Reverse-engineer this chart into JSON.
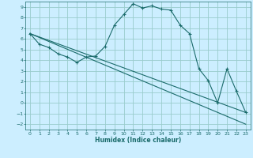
{
  "title": "",
  "xlabel": "Humidex (Indice chaleur)",
  "bg_color": "#cceeff",
  "grid_color": "#99cccc",
  "line_color": "#1a6b6b",
  "xlim": [
    -0.5,
    23.5
  ],
  "ylim": [
    -2.5,
    9.5
  ],
  "xticks": [
    0,
    1,
    2,
    3,
    4,
    5,
    6,
    7,
    8,
    9,
    10,
    11,
    12,
    13,
    14,
    15,
    16,
    17,
    18,
    19,
    20,
    21,
    22,
    23
  ],
  "yticks": [
    -2,
    -1,
    0,
    1,
    2,
    3,
    4,
    5,
    6,
    7,
    8,
    9
  ],
  "series1_x": [
    0,
    1,
    2,
    3,
    4,
    5,
    6,
    7,
    8,
    9,
    10,
    11,
    12,
    13,
    14,
    15,
    16,
    17,
    18,
    19,
    20,
    21,
    22,
    23
  ],
  "series1_y": [
    6.5,
    5.5,
    5.2,
    4.6,
    4.3,
    3.8,
    4.3,
    4.4,
    5.3,
    7.3,
    8.3,
    9.3,
    8.9,
    9.1,
    8.8,
    8.7,
    7.3,
    6.5,
    3.2,
    2.1,
    0.0,
    3.2,
    1.1,
    -0.9
  ],
  "series2_x": [
    0,
    23
  ],
  "series2_y": [
    6.5,
    -0.9
  ],
  "series3_x": [
    0,
    23
  ],
  "series3_y": [
    6.5,
    -2.0
  ],
  "marker_size": 3,
  "linewidth": 0.8
}
